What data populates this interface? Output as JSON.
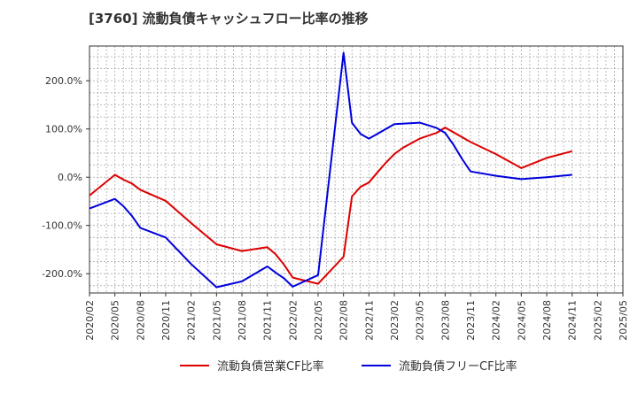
{
  "chart_data": {
    "type": "line",
    "title": "[3760]  流動負債キャッシュフロー比率の推移",
    "xlabel": "",
    "ylabel": "",
    "x_ticks": [
      "2020/02",
      "2020/05",
      "2020/08",
      "2020/11",
      "2021/02",
      "2021/05",
      "2021/08",
      "2021/11",
      "2022/02",
      "2022/05",
      "2022/08",
      "2022/11",
      "2023/02",
      "2023/05",
      "2023/08",
      "2023/11",
      "2024/02",
      "2024/05",
      "2024/08",
      "2024/11",
      "2025/02",
      "2025/05"
    ],
    "y_ticks": [
      -200,
      -100,
      0,
      100,
      200
    ],
    "y_tick_labels": [
      "-200.0%",
      "-100.0%",
      "0.0%",
      "100.0%",
      "200.0%"
    ],
    "ylim": [
      -240,
      272
    ],
    "grid": true,
    "legend_position": "bottom",
    "series": [
      {
        "name": "流動負債営業CF比率",
        "color": "#dd0000",
        "points": [
          [
            "2020/02",
            -38
          ],
          [
            "2020/05",
            5
          ],
          [
            "2020/06",
            -5
          ],
          [
            "2020/07",
            -13
          ],
          [
            "2020/08",
            -26
          ],
          [
            "2020/11",
            -49
          ],
          [
            "2021/02",
            -95
          ],
          [
            "2021/05",
            -139
          ],
          [
            "2021/08",
            -153
          ],
          [
            "2021/11",
            -145
          ],
          [
            "2021/12",
            -160
          ],
          [
            "2022/01",
            -182
          ],
          [
            "2022/02",
            -208
          ],
          [
            "2022/05",
            -221
          ],
          [
            "2022/08",
            -165
          ],
          [
            "2022/09",
            -40
          ],
          [
            "2022/10",
            -20
          ],
          [
            "2022/11",
            -11
          ],
          [
            "2022/12",
            10
          ],
          [
            "2023/01",
            30
          ],
          [
            "2023/02",
            48
          ],
          [
            "2023/03",
            61
          ],
          [
            "2023/05",
            80
          ],
          [
            "2023/07",
            92
          ],
          [
            "2023/08",
            103
          ],
          [
            "2023/11",
            73
          ],
          [
            "2024/02",
            48
          ],
          [
            "2024/05",
            19
          ],
          [
            "2024/08",
            40
          ],
          [
            "2024/11",
            54
          ]
        ]
      },
      {
        "name": "流動負債フリーCF比率",
        "color": "#0000dd",
        "points": [
          [
            "2020/02",
            -65
          ],
          [
            "2020/05",
            -45
          ],
          [
            "2020/06",
            -60
          ],
          [
            "2020/07",
            -80
          ],
          [
            "2020/08",
            -105
          ],
          [
            "2020/11",
            -125
          ],
          [
            "2021/02",
            -180
          ],
          [
            "2021/05",
            -228
          ],
          [
            "2021/08",
            -216
          ],
          [
            "2021/11",
            -185
          ],
          [
            "2021/12",
            -198
          ],
          [
            "2022/01",
            -210
          ],
          [
            "2022/02",
            -227
          ],
          [
            "2022/05",
            -203
          ],
          [
            "2022/08",
            258
          ],
          [
            "2022/09",
            113
          ],
          [
            "2022/10",
            90
          ],
          [
            "2022/11",
            80
          ],
          [
            "2022/12",
            90
          ],
          [
            "2023/01",
            100
          ],
          [
            "2023/02",
            110
          ],
          [
            "2023/05",
            113
          ],
          [
            "2023/07",
            102
          ],
          [
            "2023/08",
            92
          ],
          [
            "2023/09",
            67
          ],
          [
            "2023/10",
            38
          ],
          [
            "2023/11",
            12
          ],
          [
            "2024/02",
            3
          ],
          [
            "2024/05",
            -4
          ],
          [
            "2024/08",
            0
          ],
          [
            "2024/11",
            5
          ]
        ]
      }
    ]
  }
}
